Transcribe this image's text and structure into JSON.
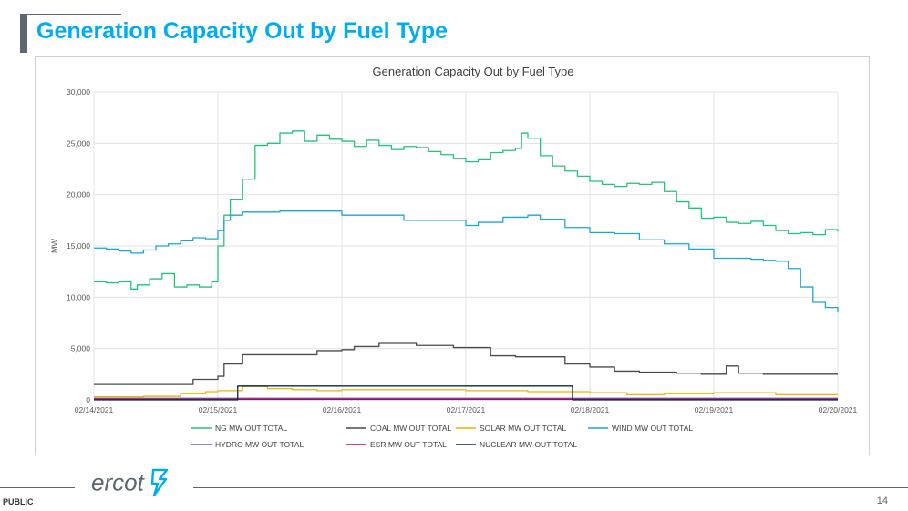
{
  "slide": {
    "title": "Generation Capacity Out by Fuel Type",
    "footer_label": "PUBLIC",
    "page_number": "14",
    "logo_text": "ercot",
    "accent_color": "#00aeef",
    "text_gray": "#5b6770"
  },
  "chart_data": {
    "type": "line",
    "title": "Generation Capacity Out by Fuel Type",
    "xlabel": "",
    "ylabel": "MW",
    "ylim": [
      0,
      30000
    ],
    "yticks": [
      0,
      5000,
      10000,
      15000,
      20000,
      25000,
      30000
    ],
    "ytick_labels": [
      "0",
      "5,000",
      "10,000",
      "15,000",
      "20,000",
      "25,000",
      "30,000"
    ],
    "xlim": [
      0,
      6
    ],
    "xticks": [
      0,
      1,
      2,
      3,
      4,
      5,
      6
    ],
    "xtick_labels": [
      "02/14/2021",
      "02/15/2021",
      "02/16/2021",
      "02/17/2021",
      "02/18/2021",
      "02/19/2021",
      "02/20/2021"
    ],
    "grid": true,
    "legend_position": "bottom",
    "series": [
      {
        "name": "NG MW OUT TOTAL",
        "color": "#22c47c",
        "x": [
          0,
          0.1,
          0.2,
          0.3,
          0.35,
          0.45,
          0.55,
          0.65,
          0.75,
          0.85,
          0.95,
          1.0,
          1.05,
          1.1,
          1.2,
          1.3,
          1.4,
          1.5,
          1.6,
          1.7,
          1.8,
          1.9,
          2.0,
          2.1,
          2.2,
          2.3,
          2.4,
          2.5,
          2.6,
          2.7,
          2.8,
          2.9,
          3.0,
          3.1,
          3.2,
          3.3,
          3.4,
          3.45,
          3.5,
          3.6,
          3.7,
          3.8,
          3.9,
          4.0,
          4.1,
          4.2,
          4.3,
          4.4,
          4.5,
          4.6,
          4.7,
          4.8,
          4.9,
          5.0,
          5.1,
          5.2,
          5.3,
          5.4,
          5.5,
          5.6,
          5.7,
          5.8,
          5.9,
          6.0
        ],
        "y": [
          11500,
          11400,
          11500,
          10800,
          11200,
          11800,
          12300,
          11000,
          11200,
          11000,
          11500,
          15000,
          18000,
          19500,
          21500,
          24800,
          25000,
          26000,
          26200,
          25200,
          25800,
          25400,
          25200,
          24700,
          25300,
          24800,
          24400,
          24700,
          24600,
          24200,
          23900,
          23500,
          23200,
          23400,
          24100,
          24300,
          24500,
          26000,
          25500,
          23800,
          22800,
          22300,
          21800,
          21300,
          21000,
          20800,
          21100,
          21000,
          21200,
          20300,
          19300,
          18700,
          17700,
          17800,
          17300,
          17200,
          17400,
          17000,
          16500,
          16200,
          16300,
          16100,
          16600,
          16400
        ]
      },
      {
        "name": "COAL MW OUT TOTAL",
        "color": "#4a4a4a",
        "x": [
          0,
          0.2,
          0.5,
          0.8,
          1.0,
          1.05,
          1.2,
          1.5,
          1.8,
          2.0,
          2.1,
          2.3,
          2.6,
          2.9,
          3.0,
          3.2,
          3.4,
          3.5,
          3.6,
          3.8,
          4.0,
          4.2,
          4.4,
          4.7,
          4.9,
          5.0,
          5.1,
          5.2,
          5.4,
          5.6,
          5.8,
          6.0
        ],
        "y": [
          1500,
          1500,
          1500,
          2000,
          2300,
          3500,
          4400,
          4400,
          4800,
          4900,
          5200,
          5500,
          5300,
          5100,
          5100,
          4300,
          4200,
          4200,
          4200,
          3500,
          3200,
          2800,
          2700,
          2600,
          2500,
          2500,
          3300,
          2600,
          2500,
          2500,
          2500,
          2500
        ]
      },
      {
        "name": "SOLAR MW OUT TOTAL",
        "color": "#f0b400",
        "x": [
          0,
          0.4,
          0.7,
          0.9,
          1.0,
          1.2,
          1.4,
          1.6,
          1.8,
          2.0,
          2.5,
          3.0,
          3.5,
          4.0,
          4.3,
          4.6,
          5.0,
          5.5,
          6.0
        ],
        "y": [
          300,
          350,
          600,
          800,
          900,
          1300,
          1100,
          1000,
          900,
          1000,
          1000,
          900,
          800,
          700,
          500,
          600,
          700,
          500,
          500
        ]
      },
      {
        "name": "WIND MW OUT TOTAL",
        "color": "#1ba6d0",
        "x": [
          0,
          0.1,
          0.2,
          0.3,
          0.4,
          0.5,
          0.6,
          0.7,
          0.8,
          0.9,
          1.0,
          1.05,
          1.1,
          1.2,
          1.5,
          2.0,
          2.5,
          3.0,
          3.1,
          3.3,
          3.5,
          3.6,
          3.8,
          4.0,
          4.2,
          4.4,
          4.6,
          4.8,
          5.0,
          5.2,
          5.3,
          5.4,
          5.5,
          5.6,
          5.7,
          5.8,
          5.9,
          6.0
        ],
        "y": [
          14800,
          14700,
          14500,
          14300,
          14600,
          15000,
          15200,
          15500,
          15800,
          15700,
          16500,
          17500,
          18000,
          18300,
          18400,
          18000,
          17500,
          17000,
          17300,
          17800,
          18000,
          17600,
          16800,
          16300,
          16200,
          15600,
          15200,
          14700,
          13800,
          13800,
          13700,
          13600,
          13500,
          12800,
          11000,
          9500,
          9000,
          8500
        ]
      },
      {
        "name": "HYDRO MW OUT TOTAL",
        "color": "#6f5bb5",
        "x": [
          0,
          6
        ],
        "y": [
          150,
          150
        ]
      },
      {
        "name": "ESR MW OUT TOTAL",
        "color": "#b0006b",
        "x": [
          0,
          6
        ],
        "y": [
          60,
          60
        ]
      },
      {
        "name": "NUCLEAR MW OUT TOTAL",
        "color": "#0a2a44",
        "x": [
          0,
          1.15,
          1.16,
          3.85,
          3.86,
          6.0
        ],
        "y": [
          0,
          0,
          1350,
          1350,
          0,
          0
        ]
      }
    ]
  }
}
